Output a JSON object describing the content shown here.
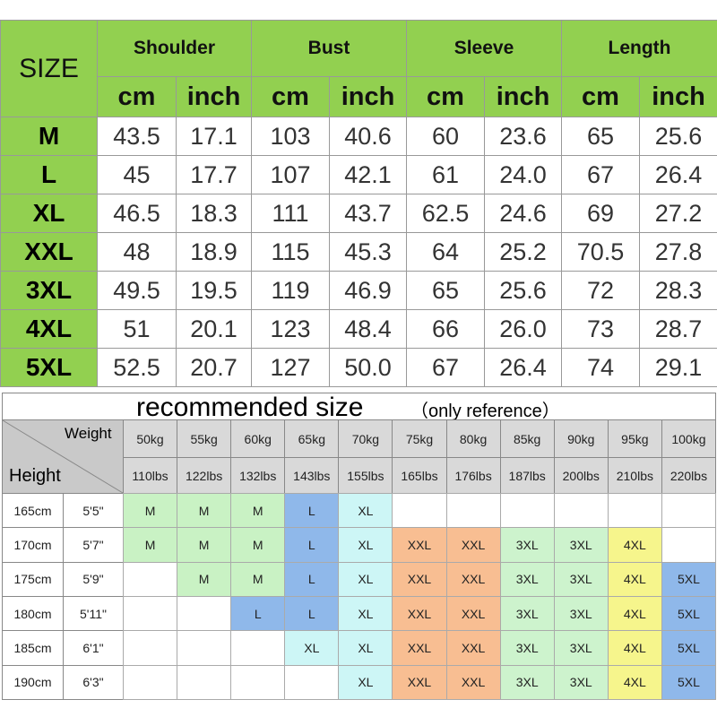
{
  "size_chart": {
    "size_header": "SIZE",
    "measurements": [
      {
        "name": "Shoulder",
        "units": [
          "cm",
          "inch"
        ]
      },
      {
        "name": "Bust",
        "units": [
          "cm",
          "inch"
        ]
      },
      {
        "name": "Sleeve",
        "units": [
          "cm",
          "inch"
        ]
      },
      {
        "name": "Length",
        "units": [
          "cm",
          "inch"
        ]
      }
    ],
    "rows": [
      {
        "size": "M",
        "values": [
          "43.5",
          "17.1",
          "103",
          "40.6",
          "60",
          "23.6",
          "65",
          "25.6"
        ]
      },
      {
        "size": "L",
        "values": [
          "45",
          "17.7",
          "107",
          "42.1",
          "61",
          "24.0",
          "67",
          "26.4"
        ]
      },
      {
        "size": "XL",
        "values": [
          "46.5",
          "18.3",
          "111",
          "43.7",
          "62.5",
          "24.6",
          "69",
          "27.2"
        ]
      },
      {
        "size": "XXL",
        "values": [
          "48",
          "18.9",
          "115",
          "45.3",
          "64",
          "25.2",
          "70.5",
          "27.8"
        ]
      },
      {
        "size": "3XL",
        "values": [
          "49.5",
          "19.5",
          "119",
          "46.9",
          "65",
          "25.6",
          "72",
          "28.3"
        ]
      },
      {
        "size": "4XL",
        "values": [
          "51",
          "20.1",
          "123",
          "48.4",
          "66",
          "26.0",
          "73",
          "28.7"
        ]
      },
      {
        "size": "5XL",
        "values": [
          "52.5",
          "20.7",
          "127",
          "50.0",
          "67",
          "26.4",
          "74",
          "29.1"
        ]
      }
    ]
  },
  "recommended": {
    "title": "recommended size",
    "note": "（only reference）",
    "weight_label": "Weight",
    "height_label": "Height",
    "weights_kg": [
      "50kg",
      "55kg",
      "60kg",
      "65kg",
      "70kg",
      "75kg",
      "80kg",
      "85kg",
      "90kg",
      "95kg",
      "100kg"
    ],
    "weights_lbs": [
      "110lbs",
      "122lbs",
      "132lbs",
      "143lbs",
      "155lbs",
      "165lbs",
      "176lbs",
      "187lbs",
      "200lbs",
      "210lbs",
      "220lbs"
    ],
    "rows": [
      {
        "height_cm": "165cm",
        "height_ft": "5'5\"",
        "sizes": [
          "M",
          "M",
          "M",
          "L",
          "XL",
          null,
          null,
          null,
          null,
          null,
          null
        ]
      },
      {
        "height_cm": "170cm",
        "height_ft": "5'7\"",
        "sizes": [
          "M",
          "M",
          "M",
          "L",
          "XL",
          "XXL",
          "XXL",
          "3XL",
          "3XL",
          "4XL",
          null
        ]
      },
      {
        "height_cm": "175cm",
        "height_ft": "5'9\"",
        "sizes": [
          null,
          "M",
          "M",
          "L",
          "XL",
          "XXL",
          "XXL",
          "3XL",
          "3XL",
          "4XL",
          "5XL"
        ]
      },
      {
        "height_cm": "180cm",
        "height_ft": "5'11\"",
        "sizes": [
          null,
          null,
          "L",
          "L",
          "XL",
          "XXL",
          "XXL",
          "3XL",
          "3XL",
          "4XL",
          "5XL"
        ]
      },
      {
        "height_cm": "185cm",
        "height_ft": "6'1\"",
        "sizes": [
          null,
          null,
          null,
          "XL",
          "XL",
          "XXL",
          "XXL",
          "3XL",
          "3XL",
          "4XL",
          "5XL"
        ]
      },
      {
        "height_cm": "190cm",
        "height_ft": "6'3\"",
        "sizes": [
          null,
          null,
          null,
          null,
          "XL",
          "XXL",
          "XXL",
          "3XL",
          "3XL",
          "4XL",
          "5XL"
        ]
      }
    ],
    "size_colors": {
      "M": "#c9f2c4",
      "L": "#8fb8ea",
      "XL": "#cdf6f6",
      "XXL": "#f8be92",
      "3XL": "#cdf3cd",
      "4XL": "#f6f58c",
      "5XL": "#8fb8ea"
    }
  }
}
